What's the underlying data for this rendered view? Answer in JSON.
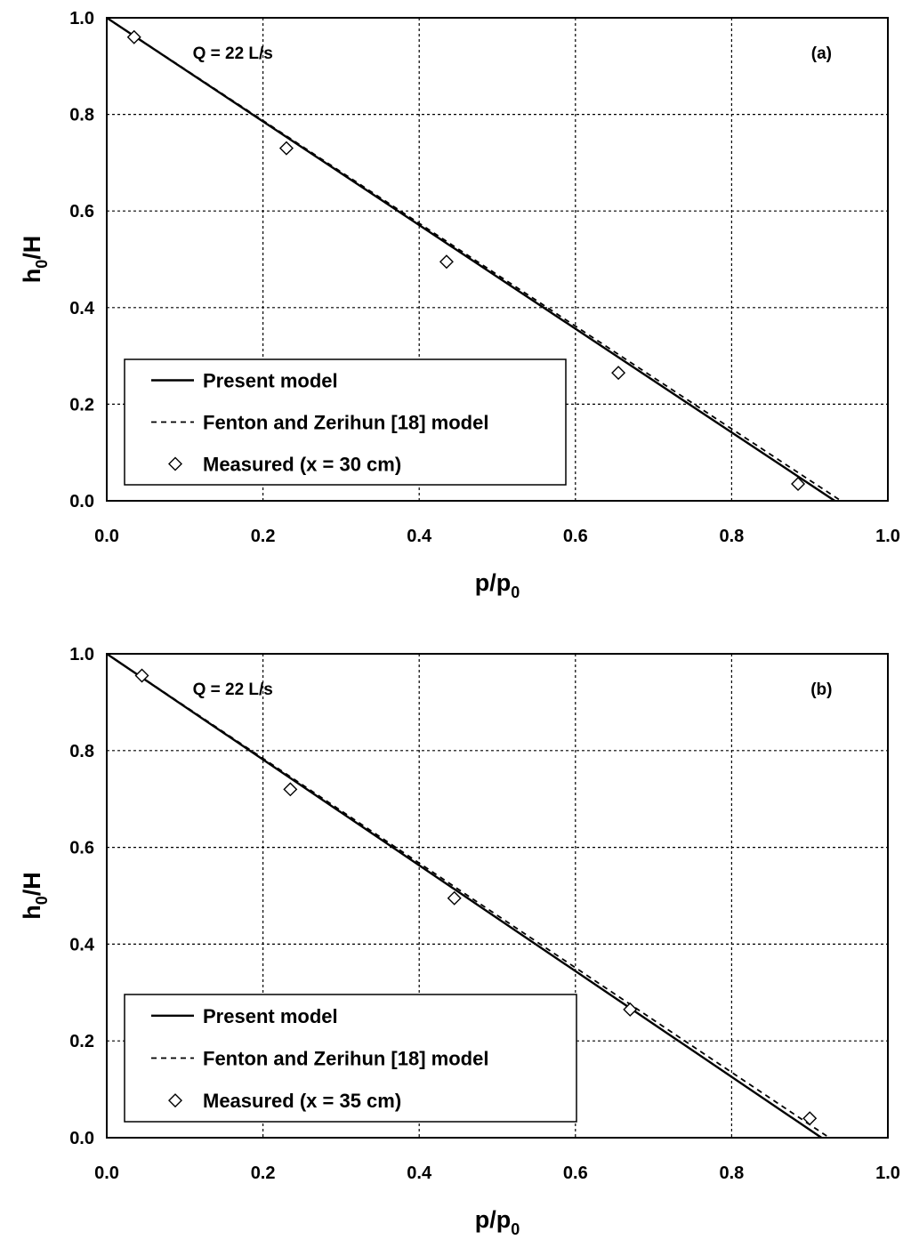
{
  "chart_data": [
    {
      "type": "line",
      "panel_label": "(a)",
      "annotation": "Q = 22 L/s",
      "xlabel": {
        "main": "p/p",
        "sub": "0"
      },
      "ylabel": {
        "main": "h",
        "sub": "0",
        "tail": "/H"
      },
      "xlim": [
        0,
        1
      ],
      "ylim": [
        0,
        1
      ],
      "x_ticks": [
        "0.0",
        "0.2",
        "0.4",
        "0.6",
        "0.8",
        "1.0"
      ],
      "y_ticks": [
        "0.0",
        "0.2",
        "0.4",
        "0.6",
        "0.8",
        "1.0"
      ],
      "grid": true,
      "legend_position": "bottom-left",
      "series": [
        {
          "name": "Present  model",
          "style": "solid",
          "x": [
            0,
            0.932
          ],
          "y": [
            1.0,
            0.0
          ]
        },
        {
          "name": "Fenton and Zerihun [18] model",
          "style": "dashed",
          "x": [
            0,
            0.94
          ],
          "y": [
            1.0,
            0.0
          ]
        },
        {
          "name": "Measured (x = 30 cm)",
          "style": "diamond",
          "x": [
            0.035,
            0.23,
            0.435,
            0.655,
            0.885
          ],
          "y": [
            0.96,
            0.73,
            0.495,
            0.265,
            0.035
          ]
        }
      ]
    },
    {
      "type": "line",
      "panel_label": "(b)",
      "annotation": "Q = 22 L/s",
      "xlabel": {
        "main": "p/p",
        "sub": "0"
      },
      "ylabel": {
        "main": "h",
        "sub": "0",
        "tail": "/H"
      },
      "xlim": [
        0,
        1
      ],
      "ylim": [
        0,
        1
      ],
      "x_ticks": [
        "0.0",
        "0.2",
        "0.4",
        "0.6",
        "0.8",
        "1.0"
      ],
      "y_ticks": [
        "0.0",
        "0.2",
        "0.4",
        "0.6",
        "0.8",
        "1.0"
      ],
      "grid": true,
      "legend_position": "bottom-left",
      "series": [
        {
          "name": "Present  model",
          "style": "solid",
          "x": [
            0,
            0.915
          ],
          "y": [
            1.0,
            0.0
          ]
        },
        {
          "name": "Fenton and Zerihun [18] model",
          "style": "dashed",
          "x": [
            0,
            0.925
          ],
          "y": [
            1.0,
            0.0
          ]
        },
        {
          "name": "Measured (x = 35 cm)",
          "style": "diamond",
          "x": [
            0.045,
            0.235,
            0.445,
            0.67,
            0.9
          ],
          "y": [
            0.955,
            0.72,
            0.495,
            0.265,
            0.04
          ]
        }
      ]
    }
  ]
}
